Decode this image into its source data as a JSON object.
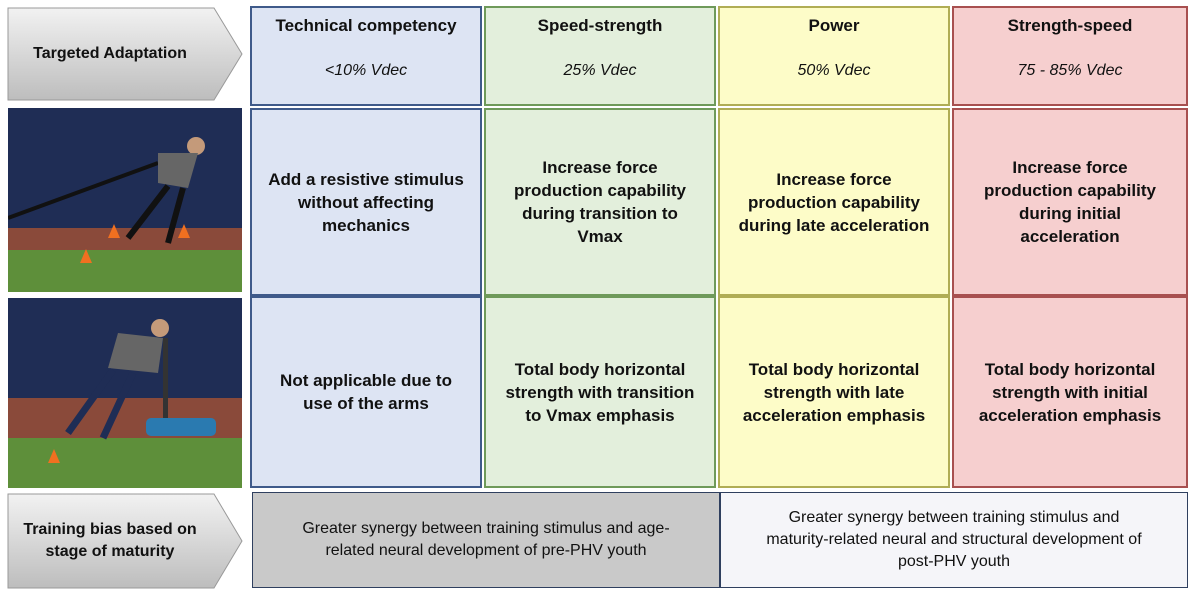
{
  "header": {
    "row_label": "Targeted Adaptation"
  },
  "columns": [
    {
      "title": "Technical competency",
      "vdec": "<10% Vdec",
      "row1": "Add a resistive stimulus without affecting mechanics",
      "row2": "Not applicable due to use of the arms"
    },
    {
      "title": "Speed-strength",
      "vdec": "25% Vdec",
      "row1": "Increase force production capability during transition to Vmax",
      "row2": "Total body horizontal strength with transition to Vmax emphasis"
    },
    {
      "title": "Power",
      "vdec": "50% Vdec",
      "row1": "Increase force production capability during late acceleration",
      "row2": "Total body horizontal strength with late acceleration emphasis"
    },
    {
      "title": "Strength-speed",
      "vdec": "75 - 85% Vdec",
      "row1": "Increase force production capability during initial acceleration",
      "row2": "Total body horizontal strength with initial acceleration emphasis"
    }
  ],
  "bias": {
    "row_label": "Training bias based on stage of maturity",
    "cells": [
      "Greater synergy between training stimulus and age-related neural development of pre-PHV youth",
      "Greater synergy between training stimulus and maturity-related neural and structural development of post-PHV youth"
    ]
  }
}
